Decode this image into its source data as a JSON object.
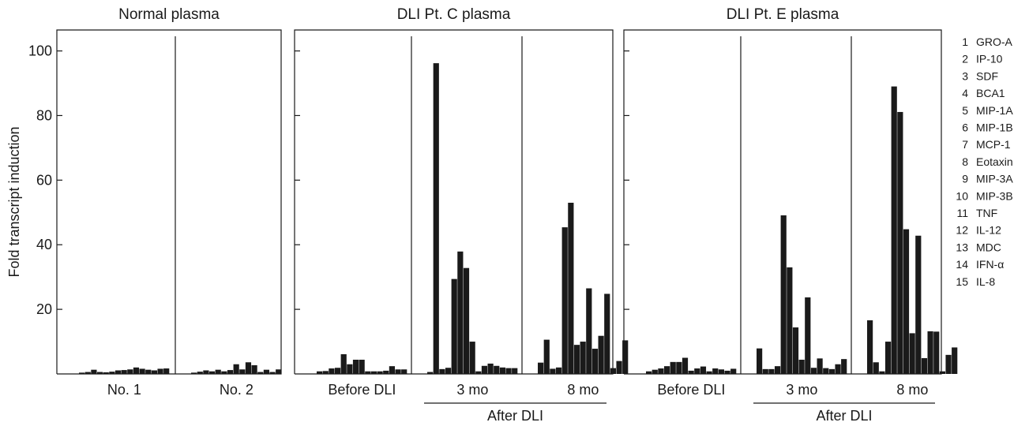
{
  "chart_data": {
    "type": "bar",
    "ylabel": "Fold transcript induction",
    "ylim": [
      0,
      106
    ],
    "yticks": [
      20,
      40,
      60,
      80,
      100
    ],
    "legend": [
      {
        "num": "1",
        "name": "GRO-A"
      },
      {
        "num": "2",
        "name": "IP-10"
      },
      {
        "num": "3",
        "name": "SDF"
      },
      {
        "num": "4",
        "name": "BCA1"
      },
      {
        "num": "5",
        "name": "MIP-1A"
      },
      {
        "num": "6",
        "name": "MIP-1B"
      },
      {
        "num": "7",
        "name": "MCP-1"
      },
      {
        "num": "8",
        "name": "Eotaxin"
      },
      {
        "num": "9",
        "name": "MIP-3A"
      },
      {
        "num": "10",
        "name": "MIP-3B"
      },
      {
        "num": "11",
        "name": "TNF"
      },
      {
        "num": "12",
        "name": "IL-12"
      },
      {
        "num": "13",
        "name": "MDC"
      },
      {
        "num": "14",
        "name": "IFN-α"
      },
      {
        "num": "15",
        "name": "IL-8"
      }
    ],
    "panels": [
      {
        "title": "Normal plasma",
        "groups": [
          {
            "label": "No. 1",
            "values": [
              0.4,
              0.6,
              1.3,
              0.6,
              0.5,
              0.7,
              1.1,
              1.2,
              1.4,
              2.0,
              1.6,
              1.3,
              1.1,
              1.6,
              1.7
            ]
          },
          {
            "label": "No. 2",
            "values": [
              0.4,
              0.7,
              1.1,
              0.8,
              1.3,
              0.8,
              1.2,
              3.0,
              1.4,
              3.6,
              2.7,
              0.6,
              1.3,
              0.6,
              1.4
            ]
          }
        ],
        "after_label": ""
      },
      {
        "title": "DLI Pt. C plasma",
        "groups": [
          {
            "label": "Before DLI",
            "values": [
              0.8,
              0.9,
              1.7,
              1.9,
              6.1,
              3.0,
              4.4,
              4.4,
              0.8,
              0.8,
              0.8,
              1.0,
              2.4,
              1.4,
              1.4
            ]
          },
          {
            "label": "3 mo",
            "values": [
              0.6,
              96.2,
              1.5,
              1.9,
              29.4,
              37.9,
              32.8,
              10.0,
              0.8,
              2.5,
              3.2,
              2.5,
              2.0,
              1.8,
              1.8
            ]
          },
          {
            "label": "8 mo",
            "values": [
              3.5,
              10.6,
              1.6,
              2.0,
              45.4,
              53.0,
              9.0,
              10.0,
              26.5,
              7.8,
              11.8,
              24.8,
              1.8,
              4.0,
              10.4
            ]
          }
        ],
        "after_label": "After DLI"
      },
      {
        "title": "DLI Pt. E plasma",
        "groups": [
          {
            "label": "Before DLI",
            "values": [
              0.8,
              1.3,
              1.7,
              2.4,
              3.7,
              3.7,
              5.0,
              1.0,
              1.7,
              2.3,
              0.8,
              1.7,
              1.4,
              1.0,
              1.6
            ]
          },
          {
            "label": "3 mo",
            "values": [
              7.9,
              1.5,
              1.5,
              2.4,
              49.1,
              33.0,
              14.4,
              4.4,
              23.7,
              1.9,
              4.8,
              1.8,
              1.5,
              3.0,
              4.6
            ]
          },
          {
            "label": "8 mo",
            "values": [
              16.6,
              3.6,
              0.8,
              10.0,
              89.0,
              81.1,
              44.8,
              12.6,
              42.8,
              4.9,
              13.2,
              13.1,
              0.8,
              5.9,
              8.2
            ]
          }
        ],
        "after_label": "After DLI"
      }
    ]
  }
}
